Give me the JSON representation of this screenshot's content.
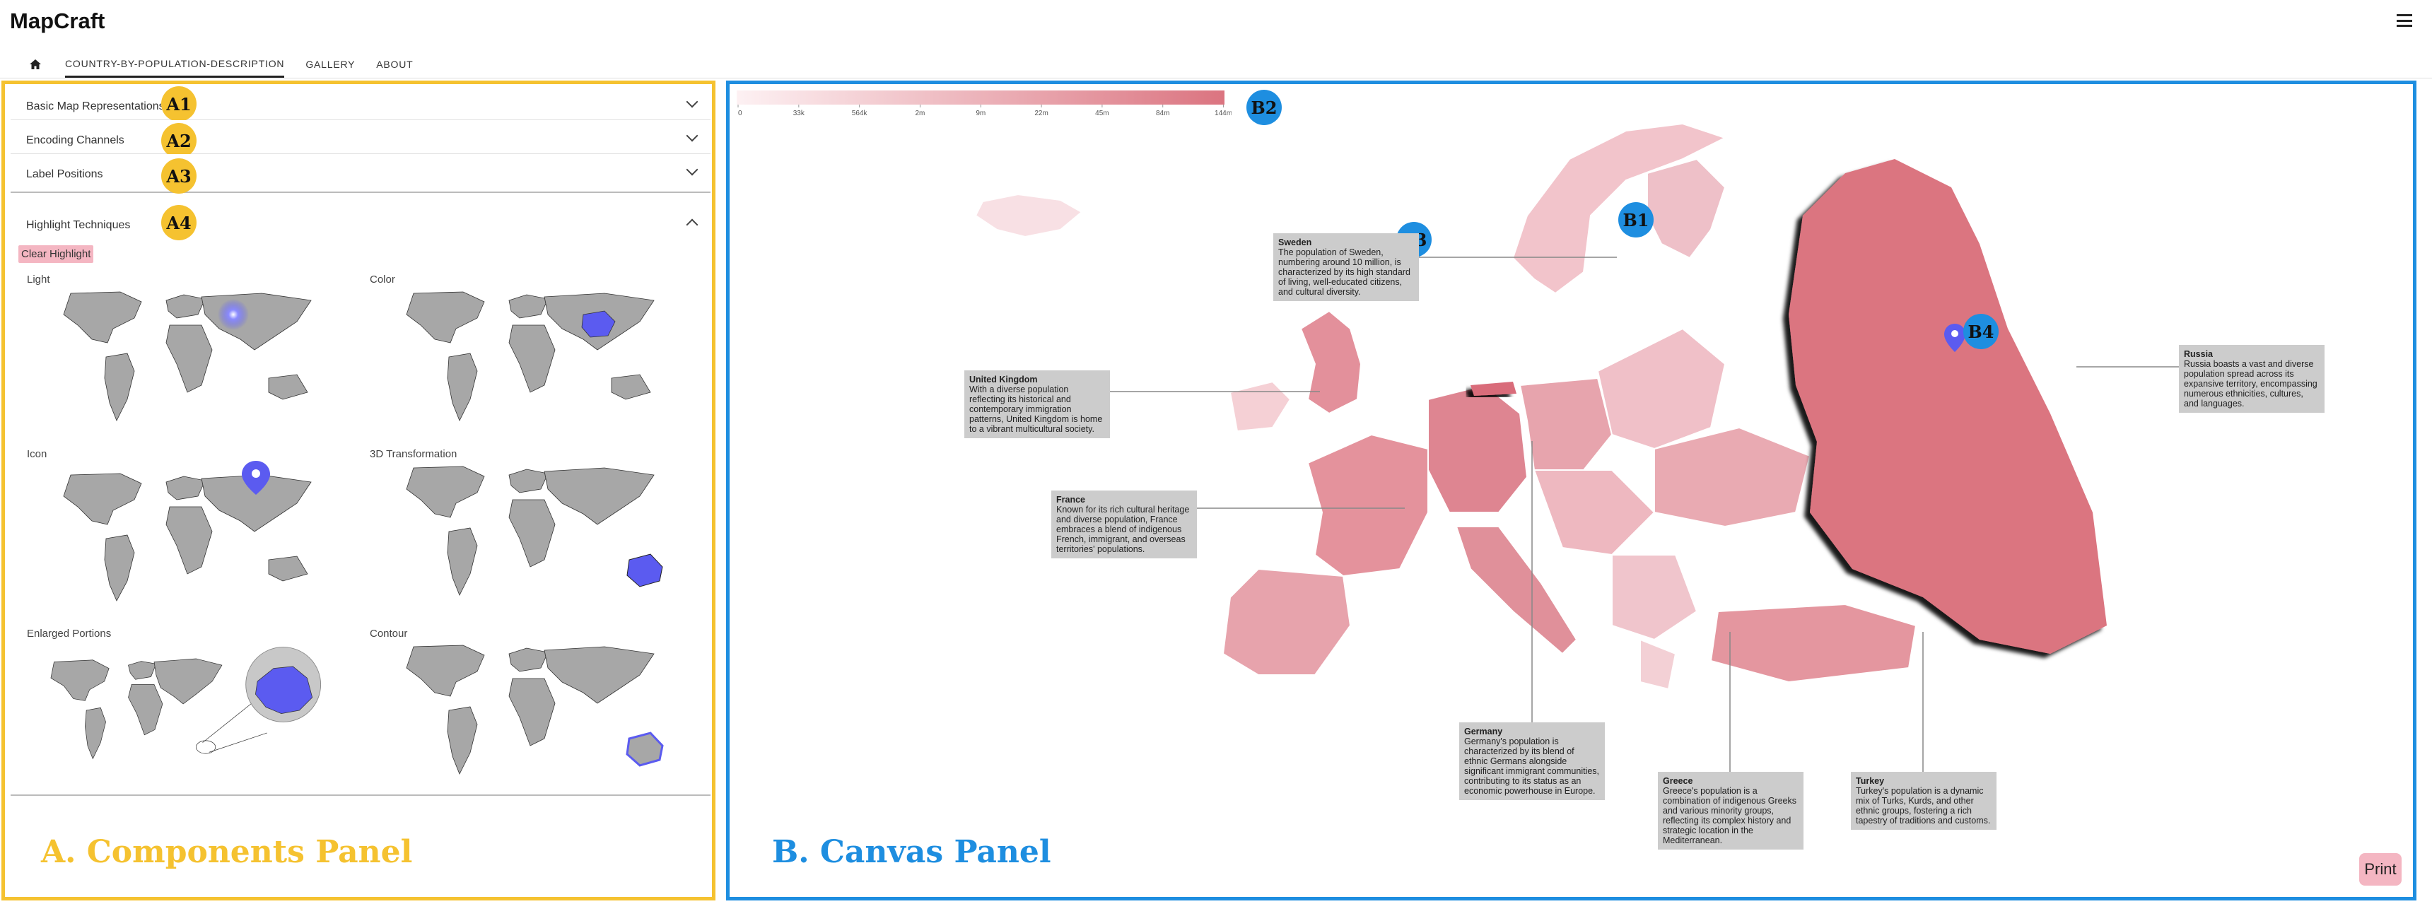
{
  "app": {
    "title": "MapCraft"
  },
  "nav": {
    "tabs": [
      "COUNTRY-BY-POPULATION-DESCRIPTION",
      "GALLERY",
      "ABOUT"
    ]
  },
  "components": {
    "accordions": [
      {
        "label": "Basic Map Representations",
        "badge": "A1"
      },
      {
        "label": "Encoding Channels",
        "badge": "A2"
      },
      {
        "label": "Label Positions",
        "badge": "A3"
      },
      {
        "label": "Highlight Techniques",
        "badge": "A4"
      }
    ],
    "clear_button": "Clear Highlight",
    "techniques": [
      "Light",
      "Color",
      "Icon",
      "3D Transformation",
      "Enlarged Portions",
      "Contour"
    ],
    "panel_title": "A. Components Panel"
  },
  "canvas": {
    "panel_title": "B. Canvas Panel",
    "legend_ticks": [
      "0",
      "33k",
      "564k",
      "2m",
      "9m",
      "22m",
      "45m",
      "84m",
      "144m"
    ],
    "badges": [
      "B1",
      "B2",
      "B3",
      "B4"
    ],
    "callouts": [
      {
        "country": "Sweden",
        "text": "The population of Sweden, numbering around 10 million, is characterized by its high standard of living, well-educated citizens, and cultural diversity."
      },
      {
        "country": "United Kingdom",
        "text": "With a diverse population reflecting its historical and contemporary immigration patterns, United Kingdom is home to a vibrant multicultural society."
      },
      {
        "country": "France",
        "text": "Known for its rich cultural heritage and diverse population, France embraces a blend of indigenous French, immigrant, and overseas territories' populations."
      },
      {
        "country": "Russia",
        "text": "Russia boasts a vast and diverse population spread across its expansive territory, encompassing numerous ethnicities, cultures, and languages."
      },
      {
        "country": "Germany",
        "text": "Germany's population is characterized by its blend of ethnic Germans alongside significant immigrant communities, contributing to its status as an economic powerhouse in Europe."
      },
      {
        "country": "Greece",
        "text": "Greece's population is a combination of indigenous Greeks and various minority groups, reflecting its complex history and strategic location in the Mediterranean."
      },
      {
        "country": "Turkey",
        "text": "Turkey's population is a dynamic mix of Turks, Kurds, and other ethnic groups, fostering a rich tapestry of traditions and customs."
      }
    ],
    "print_label": "Print"
  },
  "colors": {
    "components_border": "#f5c230",
    "canvas_border": "#1e8ee0",
    "highlight": "#5b5bf0",
    "map_fill": "#db7480"
  }
}
